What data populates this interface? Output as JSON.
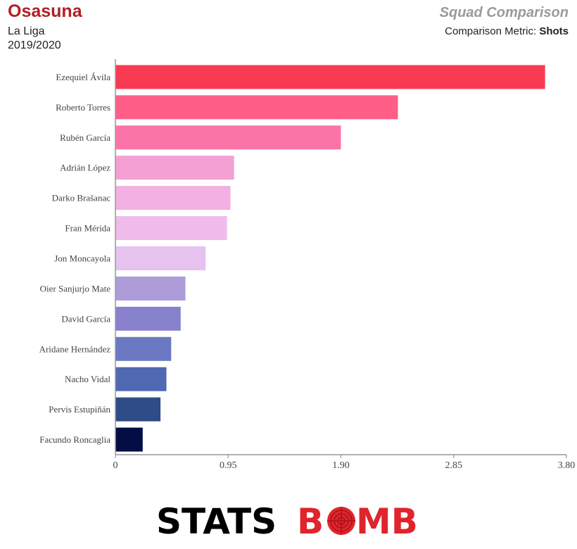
{
  "header": {
    "team": "Osasuna",
    "league": "La Liga",
    "season": "2019/2020",
    "title": "Squad Comparison",
    "metric_prefix": "Comparison Metric: ",
    "metric": "Shots"
  },
  "chart_data": {
    "type": "bar",
    "orientation": "horizontal",
    "categories": [
      "Ezequiel Ávila",
      "Roberto Torres",
      "Rubén García",
      "Adrián López",
      "Darko Brašanac",
      "Fran Mérida",
      "Jon Moncayola",
      "Oier Sanjurjo Mate",
      "David García",
      "Aridane Hernández",
      "Nacho Vidal",
      "Pervis Estupiñán",
      "Facundo Roncaglia"
    ],
    "values": [
      3.62,
      2.38,
      1.9,
      1.0,
      0.97,
      0.94,
      0.76,
      0.59,
      0.55,
      0.47,
      0.43,
      0.38,
      0.23
    ],
    "colors": [
      "#f93a53",
      "#fd5d87",
      "#fb74a8",
      "#f4a0d4",
      "#f3b0e2",
      "#efbbeb",
      "#e6c2ee",
      "#ae9cd8",
      "#8882cc",
      "#6a79c2",
      "#5168b2",
      "#2e4c87",
      "#040d44"
    ],
    "xticks": [
      "0",
      "0.95",
      "1.90",
      "2.85",
      "3.80"
    ],
    "xlim": [
      0,
      3.8
    ],
    "grid": false,
    "legend": "none"
  },
  "logo": {
    "text_left": "STATS",
    "text_right_a": "B",
    "text_right_b": "MB",
    "left_color": "#000000",
    "right_color": "#e0242b"
  }
}
